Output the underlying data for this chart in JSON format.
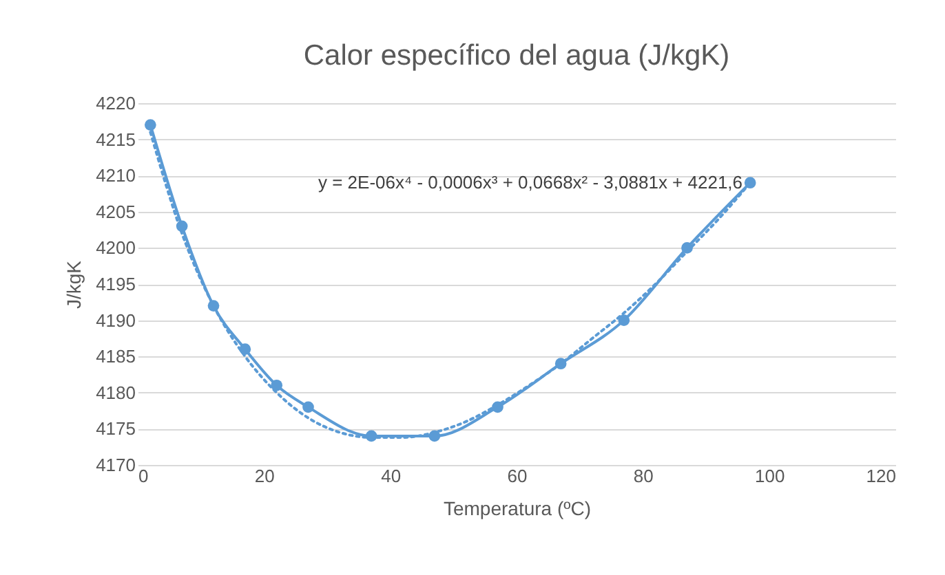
{
  "chart_data": {
    "type": "line",
    "title": "Calor específico del agua (J/kgK)",
    "xlabel": "Temperatura (ºC)",
    "ylabel": "J/kgK",
    "annotations": [
      "y = 2E-06x⁴ - 0,0006x³ + 0,0668x² - 3,0881x + 4221,6"
    ],
    "xlim": [
      0,
      120
    ],
    "xticks": [
      0,
      20,
      40,
      60,
      80,
      100,
      120
    ],
    "ylim": [
      4170,
      4220
    ],
    "yticks": [
      4170,
      4175,
      4180,
      4185,
      4190,
      4195,
      4200,
      4205,
      4210,
      4215,
      4220
    ],
    "grid": "y",
    "legend": false,
    "series": [
      {
        "type": "line",
        "color": "#5b9bd5",
        "marker": "circle",
        "line_style": "solid",
        "x": [
          2,
          7,
          12,
          17,
          22,
          27,
          37,
          47,
          57,
          67,
          77,
          87,
          97
        ],
        "values": [
          4217,
          4203,
          4192,
          4186,
          4181,
          4178,
          4174,
          4174,
          4178,
          4184,
          4190,
          4200,
          4209
        ]
      },
      {
        "type": "line",
        "color": "#5b9bd5",
        "marker": "none",
        "line_style": "dotted",
        "x": [
          2,
          7,
          12,
          17,
          22,
          27,
          32,
          37,
          42,
          47,
          52,
          57,
          62,
          67,
          72,
          77,
          82,
          87,
          92,
          97
        ],
        "values": [
          4216,
          4202,
          4192,
          4185,
          4180,
          4176.5,
          4174.5,
          4173.8,
          4173.8,
          4174.5,
          4176,
          4178.3,
          4181,
          4184,
          4187.5,
          4191,
          4195,
          4199.5,
          4204,
          4209
        ]
      }
    ]
  }
}
